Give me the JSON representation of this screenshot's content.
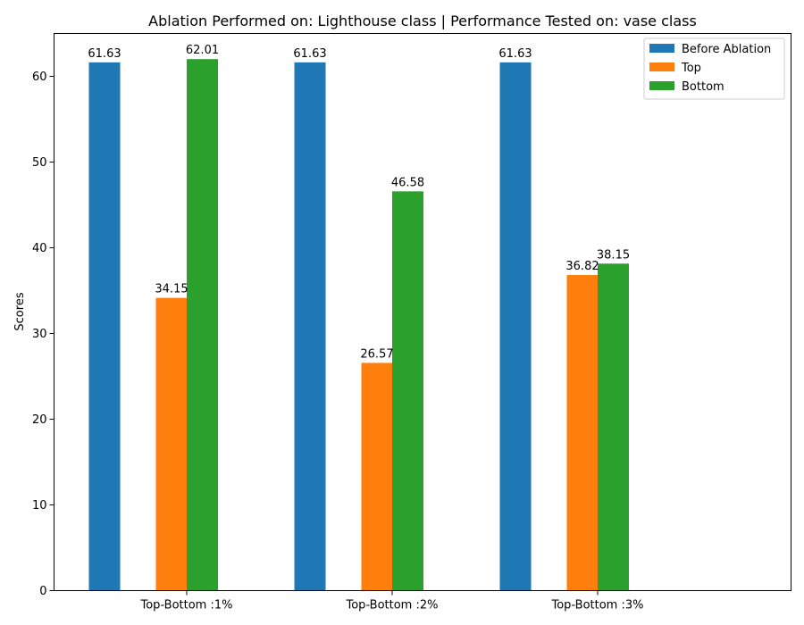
{
  "chart_data": {
    "type": "bar",
    "title": "Ablation Performed on: Lighthouse class | Performance Tested on: vase class",
    "xlabel": "",
    "ylabel": "Scores",
    "categories": [
      "Top-Bottom :1%",
      "Top-Bottom :2%",
      "Top-Bottom :3%"
    ],
    "series": [
      {
        "name": "Before Ablation",
        "values": [
          61.63,
          61.63,
          61.63
        ],
        "color": "#1f77b4"
      },
      {
        "name": "Top",
        "values": [
          34.15,
          26.57,
          36.82
        ],
        "color": "#ff7f0e"
      },
      {
        "name": "Bottom",
        "values": [
          62.01,
          46.58,
          38.15
        ],
        "color": "#2ca02c"
      }
    ],
    "data_labels": [
      [
        "61.63",
        "61.63",
        "61.63"
      ],
      [
        "34.15",
        "26.57",
        "36.82"
      ],
      [
        "62.01",
        "46.58",
        "38.15"
      ]
    ],
    "ylim": [
      0,
      65
    ],
    "yticks": [
      0,
      10,
      20,
      30,
      40,
      50,
      60
    ],
    "ytick_labels": [
      "0",
      "10",
      "20",
      "30",
      "40",
      "50",
      "60"
    ],
    "grid": false,
    "legend_position": "top-right"
  }
}
